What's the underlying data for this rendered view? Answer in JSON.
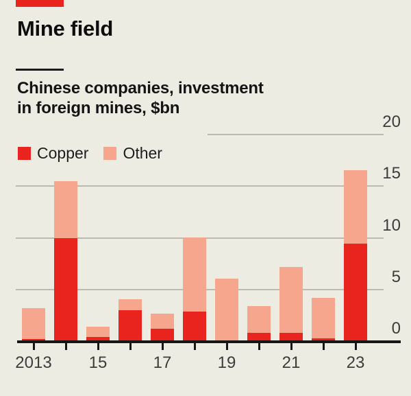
{
  "header": {
    "title": "Mine field",
    "subtitle_line1": "Chinese companies, investment",
    "subtitle_line2": "in foreign mines, $bn"
  },
  "legend": [
    {
      "label": "Copper",
      "color": "#e9231e"
    },
    {
      "label": "Other",
      "color": "#f5a68d"
    }
  ],
  "colors": {
    "background": "#edece3",
    "copper": "#e9231e",
    "other": "#f5a68d",
    "grid": "#bbbab0",
    "axis": "#161616",
    "title_text": "#0e0e0e",
    "tick_text": "#3c3c3c",
    "accent_tab": "#e9231e"
  },
  "chart_data": {
    "type": "bar",
    "stacked": true,
    "title": "Mine field",
    "subtitle": "Chinese companies, investment in foreign mines, $bn",
    "years": [
      2013,
      2014,
      2015,
      2016,
      2017,
      2018,
      2019,
      2020,
      2021,
      2022,
      2023
    ],
    "series": [
      {
        "name": "Copper",
        "color": "#e9231e",
        "values": [
          0.1,
          9.9,
          0.3,
          2.9,
          1.1,
          2.8,
          0.0,
          0.7,
          0.7,
          0.2,
          9.4
        ]
      },
      {
        "name": "Other",
        "color": "#f5a68d",
        "values": [
          3.0,
          5.5,
          1.0,
          1.1,
          1.5,
          7.2,
          6.0,
          2.6,
          6.4,
          3.9,
          7.1
        ]
      }
    ],
    "totals": [
      3.1,
      15.4,
      1.3,
      4.0,
      2.6,
      10.0,
      6.0,
      3.3,
      7.1,
      4.1,
      16.5
    ],
    "ylim": [
      0,
      20
    ],
    "y_axis": {
      "ticks": [
        0,
        5,
        10,
        15,
        20
      ],
      "side": "right",
      "grid": true
    },
    "x_axis": {
      "tick_labels": [
        "2013",
        "15",
        "17",
        "19",
        "21",
        "23"
      ],
      "ticks_every_year": true
    },
    "legend_position": "top-left"
  }
}
